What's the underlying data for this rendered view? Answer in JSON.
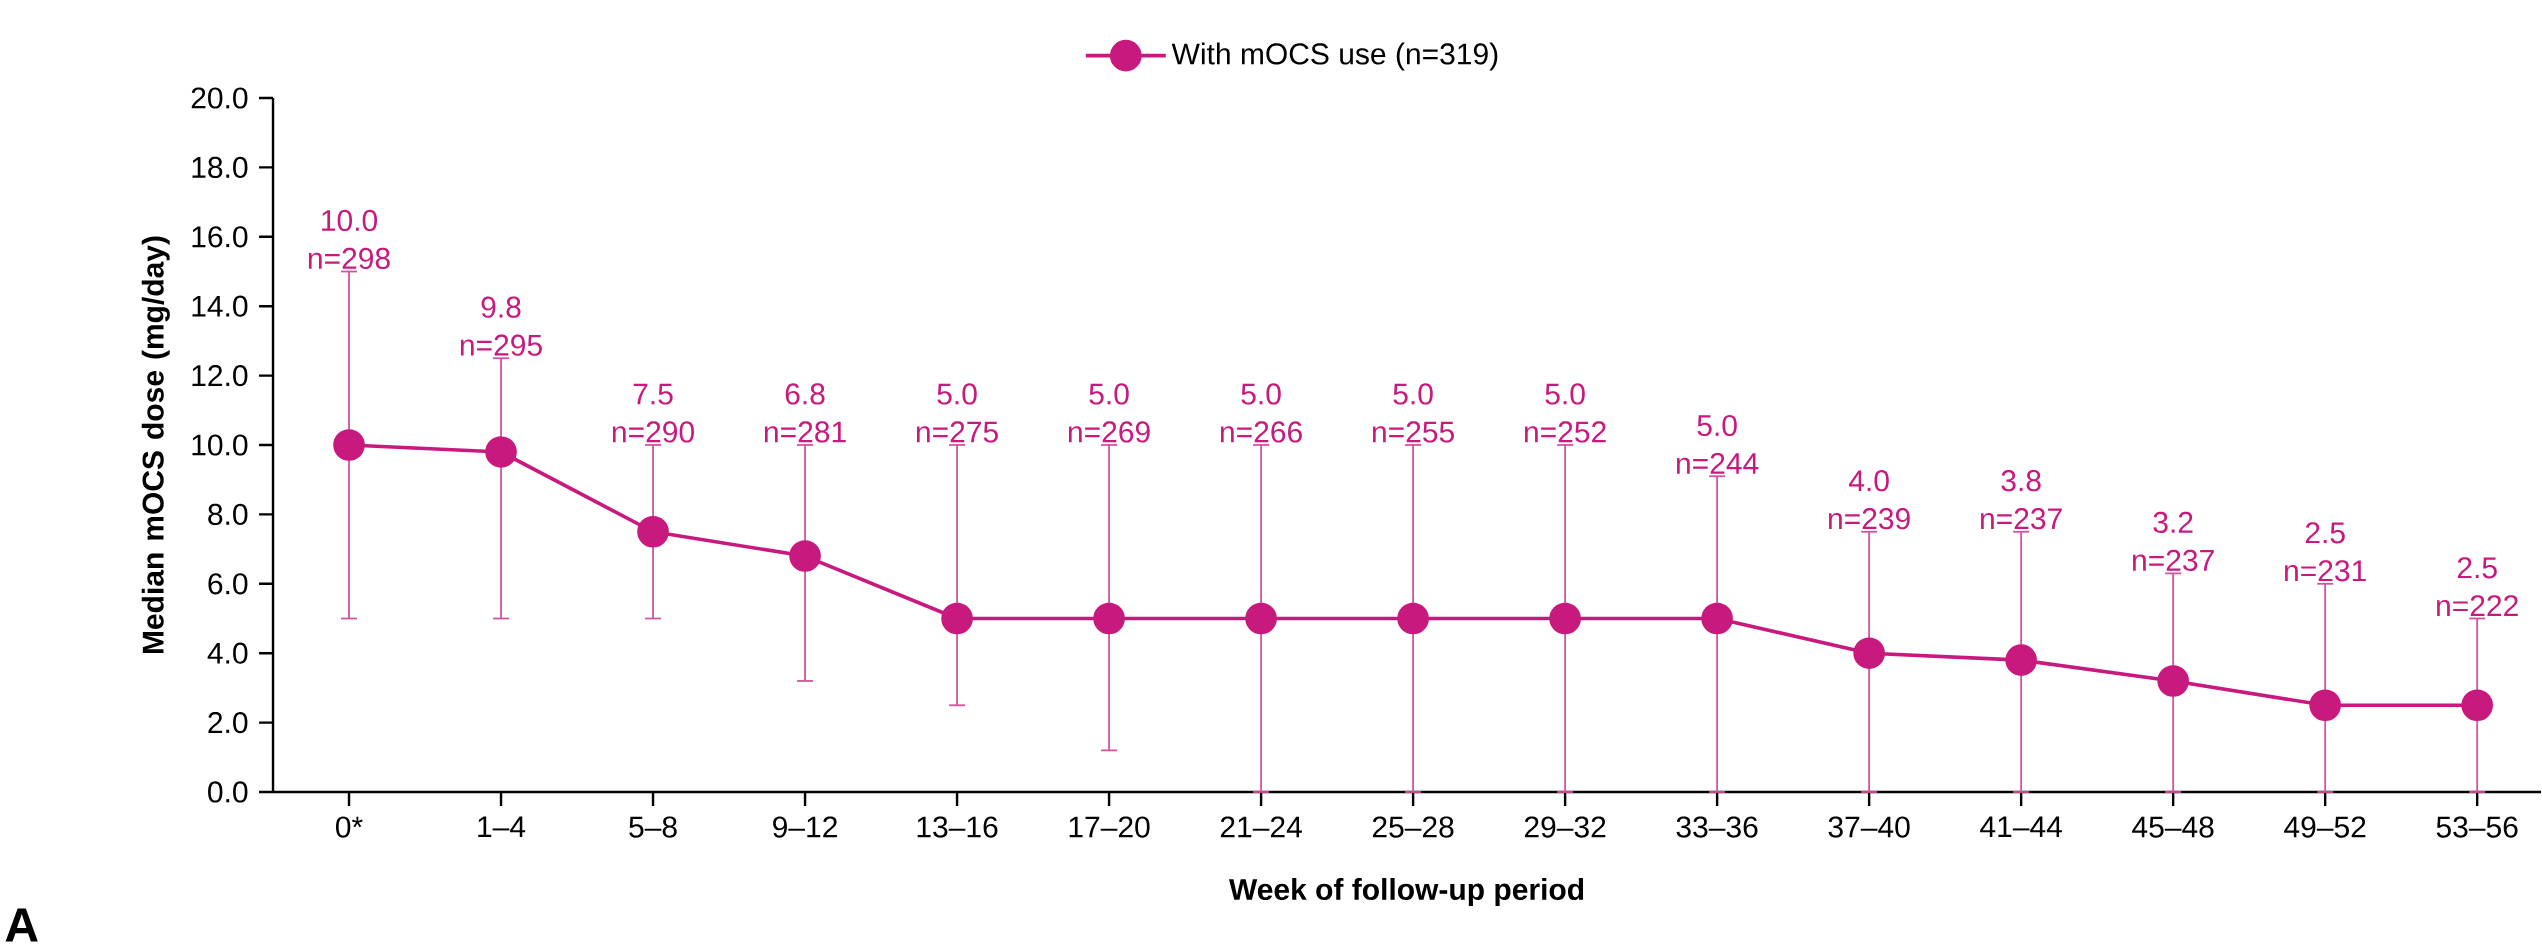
{
  "chart_data": {
    "type": "line",
    "xlabel": "Week of follow-up period",
    "ylabel": "Median mOCS dose (mg/day)",
    "categories": [
      "0*",
      "1–4",
      "5–8",
      "9–12",
      "13–16",
      "17–20",
      "21–24",
      "25–28",
      "29–32",
      "33–36",
      "37–40",
      "41–44",
      "45–48",
      "49–52",
      "53–56"
    ],
    "series": [
      {
        "name": "With mOCS use (n=319)",
        "color": "#c8197e",
        "values": [
          10.0,
          9.8,
          7.5,
          6.8,
          5.0,
          5.0,
          5.0,
          5.0,
          5.0,
          5.0,
          4.0,
          3.8,
          3.2,
          2.5,
          2.5
        ],
        "errors": [
          [
            5.0,
            15.0
          ],
          [
            5.0,
            12.5
          ],
          [
            5.0,
            10.0
          ],
          [
            3.2,
            10.0
          ],
          [
            2.5,
            10.0
          ],
          [
            1.2,
            10.0
          ],
          [
            0.0,
            10.0
          ],
          [
            0.0,
            10.0
          ],
          [
            0.0,
            10.0
          ],
          [
            0.0,
            9.1
          ],
          [
            0.0,
            7.5
          ],
          [
            0.0,
            7.5
          ],
          [
            0.0,
            6.3
          ],
          [
            0.0,
            6.0
          ],
          [
            0.0,
            5.0
          ]
        ]
      }
    ],
    "ylim": [
      0,
      20
    ],
    "yticks": [
      {
        "value": 0,
        "label": "0.0"
      },
      {
        "value": 2,
        "label": "2.0"
      },
      {
        "value": 4,
        "label": "4.0"
      },
      {
        "value": 6,
        "label": "6.0"
      },
      {
        "value": 8,
        "label": "8.0"
      },
      {
        "value": 10,
        "label": "10.0"
      },
      {
        "value": 12,
        "label": "12.0"
      },
      {
        "value": 14,
        "label": "14.0"
      },
      {
        "value": 16,
        "label": "16.0"
      },
      {
        "value": 18,
        "label": "18.0"
      },
      {
        "value": 20,
        "label": "20.0"
      }
    ],
    "annotations": [
      "A",
      "10.0",
      "n=298",
      "9.8",
      "n=295",
      "7.5",
      "n=290",
      "6.8",
      "n=281",
      "5.0",
      "n=275",
      "5.0",
      "n=269",
      "5.0",
      "n=266",
      "5.0",
      "n=255",
      "5.0",
      "n=252",
      "5.0",
      "n=244",
      "4.0",
      "n=239",
      "3.8",
      "n=237",
      "3.2",
      "n=237",
      "2.5",
      "n=231",
      "2.5",
      "n=222"
    ],
    "legend": "top",
    "marker": "circle",
    "line_style": "solid",
    "grid": false
  }
}
